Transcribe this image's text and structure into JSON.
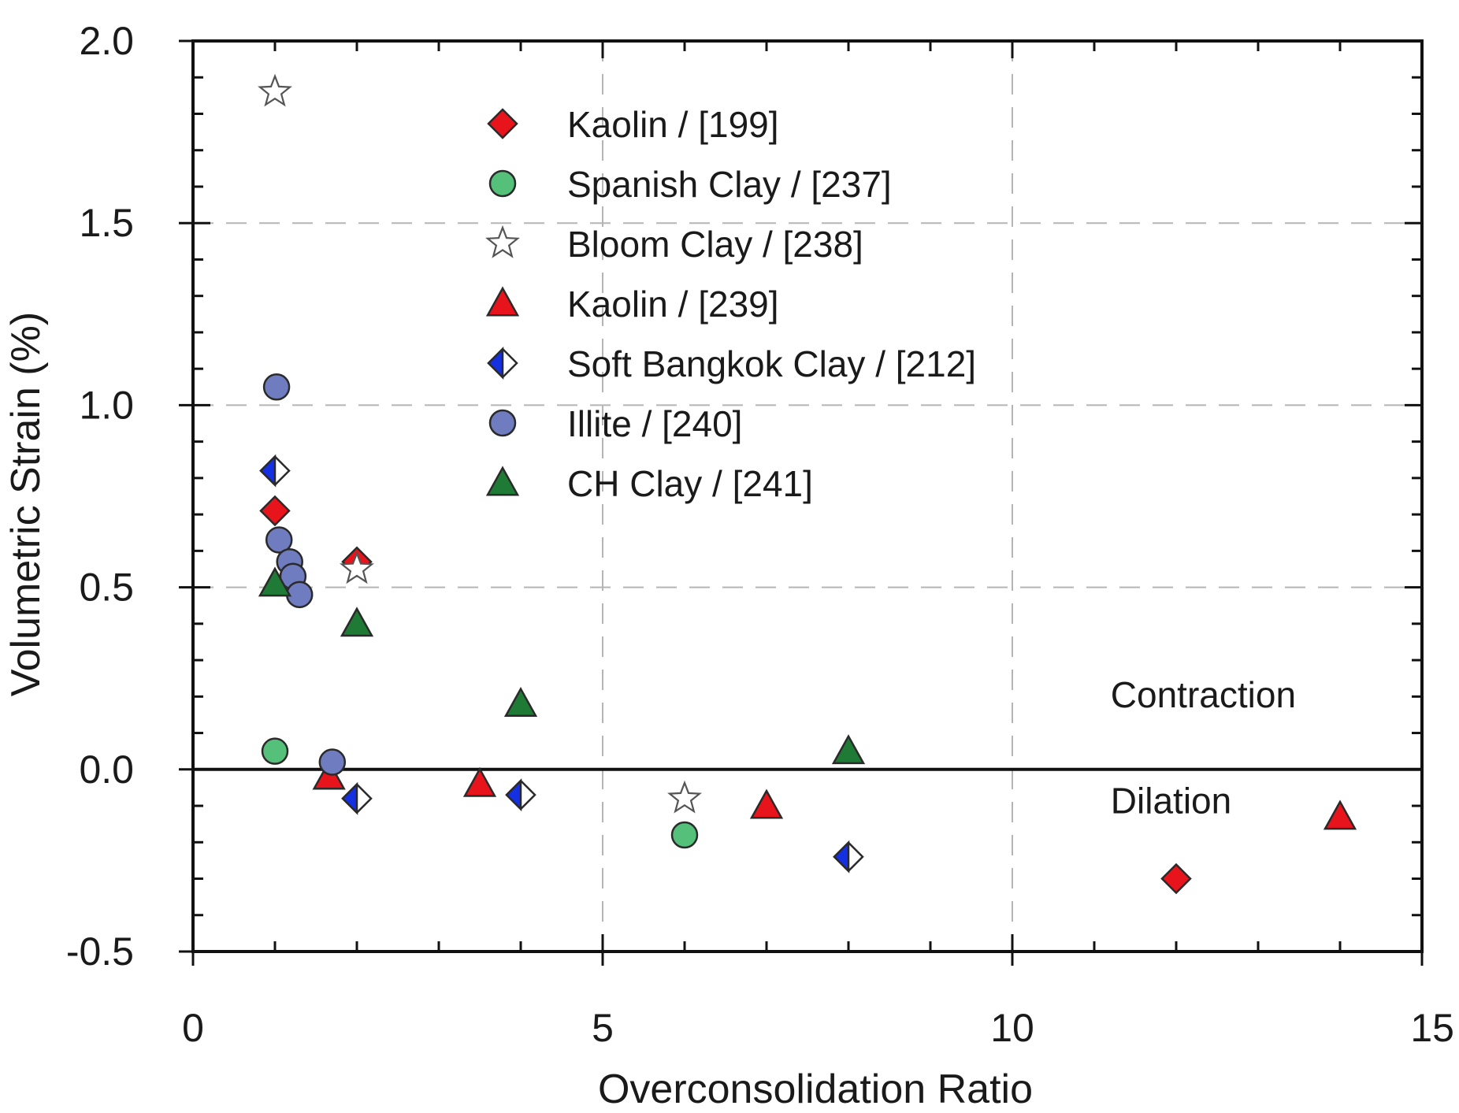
{
  "chart_data": {
    "type": "scatter",
    "title": "",
    "xlabel": "Overconsolidation Ratio",
    "ylabel": "Volumetric Strain (%)",
    "xlim": [
      0,
      15
    ],
    "ylim": [
      -0.5,
      2.0
    ],
    "xticks": [
      0,
      5,
      10,
      15
    ],
    "xtick_labels": [
      "0",
      "5",
      "10",
      "15"
    ],
    "yticks": [
      -0.5,
      0.0,
      0.5,
      1.0,
      1.5,
      2.0
    ],
    "ytick_labels": [
      "-0.5",
      "0.0",
      "0.5",
      "1.0",
      "1.5",
      "2.0"
    ],
    "grid": "dashed at x = 5, 10 and y = 0.5, 1.0, 1.5",
    "reference_line": {
      "y": 0
    },
    "legend_position": "top-center",
    "annotations": [
      {
        "text": "Contraction",
        "x": 11.2,
        "y": 0.17
      },
      {
        "text": "Dilation",
        "x": 11.2,
        "y": -0.12
      }
    ],
    "series": [
      {
        "name": "Kaolin / [199]",
        "marker": "diamond",
        "color": "#e8141c",
        "points": [
          [
            1.0,
            0.71
          ],
          [
            2.0,
            0.57
          ],
          [
            12.0,
            -0.3
          ]
        ]
      },
      {
        "name": "Spanish Clay / [237]",
        "marker": "circle",
        "color": "#55c07a",
        "points": [
          [
            1.0,
            0.05
          ],
          [
            6.0,
            -0.18
          ]
        ]
      },
      {
        "name": "Bloom Clay / [238]",
        "marker": "star",
        "color": "#ffffff",
        "points": [
          [
            1.0,
            1.86
          ],
          [
            2.0,
            0.55
          ],
          [
            6.0,
            -0.08
          ]
        ]
      },
      {
        "name": "Kaolin / [239]",
        "marker": "triangle",
        "color": "#e8141c",
        "points": [
          [
            1.66,
            -0.02
          ],
          [
            3.5,
            -0.04
          ],
          [
            7.0,
            -0.1
          ],
          [
            14.0,
            -0.13
          ]
        ]
      },
      {
        "name": "Soft Bangkok Clay / [212]",
        "marker": "half-diamond",
        "color": "#1430e0",
        "points": [
          [
            1.0,
            0.82
          ],
          [
            2.0,
            -0.08
          ],
          [
            4.0,
            -0.07
          ],
          [
            8.0,
            -0.24
          ]
        ]
      },
      {
        "name": "Illite / [240]",
        "marker": "circle",
        "color": "#6f7cc0",
        "points": [
          [
            1.02,
            1.05
          ],
          [
            1.05,
            0.63
          ],
          [
            1.18,
            0.57
          ],
          [
            1.22,
            0.53
          ],
          [
            1.3,
            0.48
          ],
          [
            1.7,
            0.02
          ]
        ]
      },
      {
        "name": "CH Clay / [241]",
        "marker": "triangle",
        "color": "#1f7a35",
        "points": [
          [
            1.0,
            0.51
          ],
          [
            2.0,
            0.4
          ],
          [
            4.0,
            0.18
          ],
          [
            8.0,
            0.05
          ]
        ]
      }
    ]
  }
}
